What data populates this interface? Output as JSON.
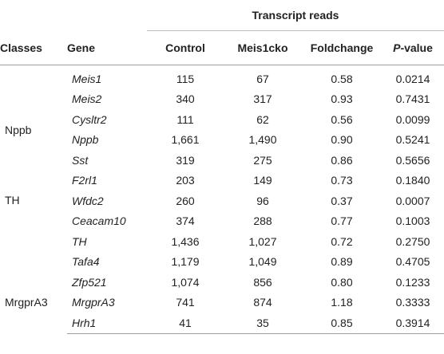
{
  "table": {
    "group_header": "Transcript reads",
    "headers": {
      "classes": "Classes",
      "gene": "Gene",
      "control": "Control",
      "meis1cko": "Meis1cko",
      "foldchange": "Foldchange",
      "pvalue_prefix": "P",
      "pvalue_suffix": "-value"
    },
    "class_labels": {
      "nppb": "Nppb",
      "th": "TH",
      "mrgpra3": "MrgprA3"
    },
    "rows": [
      {
        "gene": "Meis1",
        "control": "115",
        "cko": "67",
        "fold": "0.58",
        "p": "0.0214"
      },
      {
        "gene": "Meis2",
        "control": "340",
        "cko": "317",
        "fold": "0.93",
        "p": "0.7431"
      },
      {
        "gene": "Cysltr2",
        "control": "111",
        "cko": "62",
        "fold": "0.56",
        "p": "0.0099"
      },
      {
        "gene": "Nppb",
        "control": "1,661",
        "cko": "1,490",
        "fold": "0.90",
        "p": "0.5241"
      },
      {
        "gene": "Sst",
        "control": "319",
        "cko": "275",
        "fold": "0.86",
        "p": "0.5656"
      },
      {
        "gene": "F2rl1",
        "control": "203",
        "cko": "149",
        "fold": "0.73",
        "p": "0.1840"
      },
      {
        "gene": "Wfdc2",
        "control": "260",
        "cko": "96",
        "fold": "0.37",
        "p": "0.0007"
      },
      {
        "gene": "Ceacam10",
        "control": "374",
        "cko": "288",
        "fold": "0.77",
        "p": "0.1003"
      },
      {
        "gene": "TH",
        "control": "1,436",
        "cko": "1,027",
        "fold": "0.72",
        "p": "0.2750"
      },
      {
        "gene": "Tafa4",
        "control": "1,179",
        "cko": "1,049",
        "fold": "0.89",
        "p": "0.4705"
      },
      {
        "gene": "Zfp521",
        "control": "1,074",
        "cko": "856",
        "fold": "0.80",
        "p": "0.1233"
      },
      {
        "gene": "MrgprA3",
        "control": "741",
        "cko": "874",
        "fold": "1.18",
        "p": "0.3333"
      },
      {
        "gene": "Hrh1",
        "control": "41",
        "cko": "35",
        "fold": "0.85",
        "p": "0.3914"
      }
    ]
  }
}
